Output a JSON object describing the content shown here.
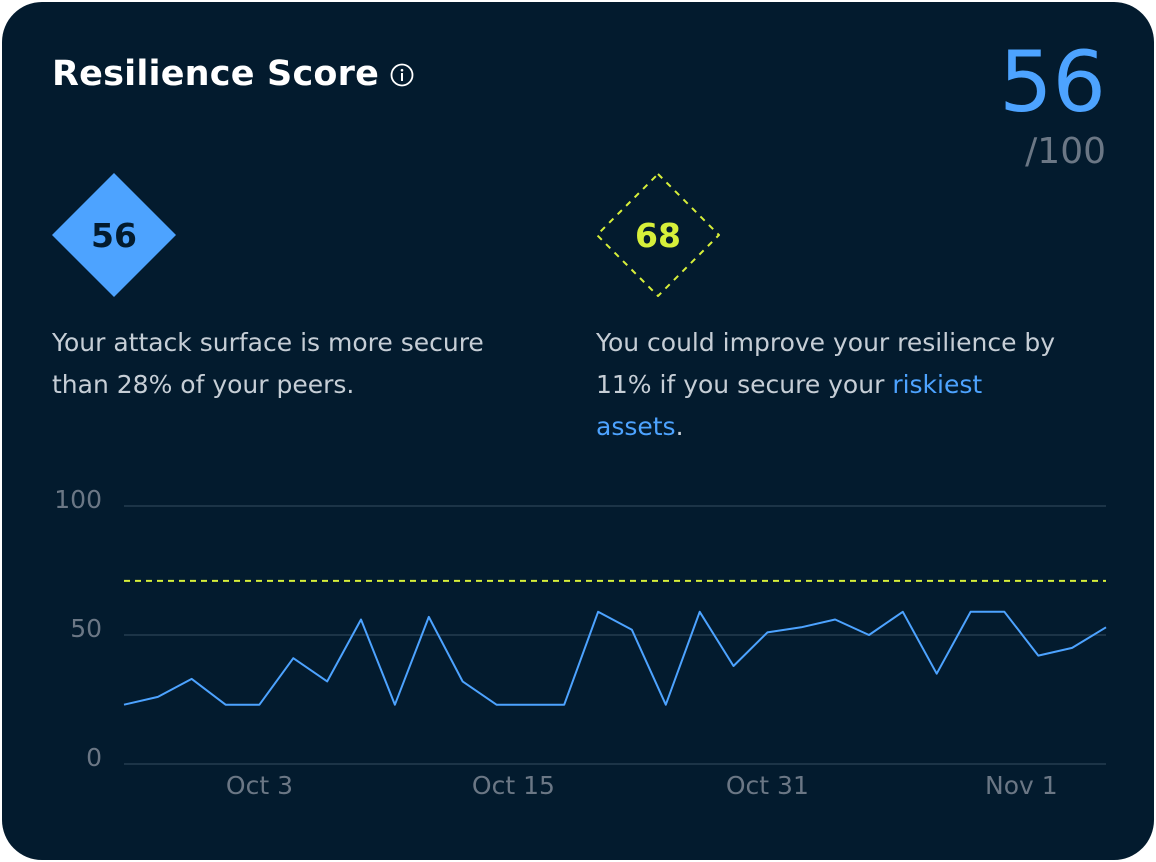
{
  "card": {
    "title": "Resilience Score",
    "score": "56",
    "score_max": "/100"
  },
  "current": {
    "value": "56",
    "text": "Your attack surface is more secure than 28% of your peers."
  },
  "potential": {
    "value": "68",
    "text_before": "You could improve your resilience by 11% if you secure your",
    "link": "riskiest assets",
    "text_after": "."
  },
  "colors": {
    "background": "#031b2e",
    "accent": "#4da3ff",
    "target": "#d7ef3a",
    "muted": "#6b7785"
  },
  "icons": [
    "info-icon"
  ],
  "chart_data": {
    "type": "line",
    "title": "",
    "xlabel": "",
    "ylabel": "",
    "ylim": [
      0,
      100
    ],
    "y_ticks": [
      "0",
      "50",
      "100"
    ],
    "x_tick_labels": [
      "Oct 3",
      "Oct 15",
      "Oct 31",
      "Nov 1"
    ],
    "x_tick_positions": [
      4,
      11.5,
      19,
      26.5
    ],
    "target_line": 71,
    "grid": true,
    "series": [
      {
        "values": [
          23,
          26,
          33,
          23,
          23,
          41,
          32,
          56,
          23,
          57,
          32,
          23,
          23,
          23,
          59,
          52,
          23,
          59,
          38,
          51,
          53,
          56,
          50,
          59,
          35,
          59,
          59,
          42,
          45,
          53
        ]
      }
    ]
  }
}
